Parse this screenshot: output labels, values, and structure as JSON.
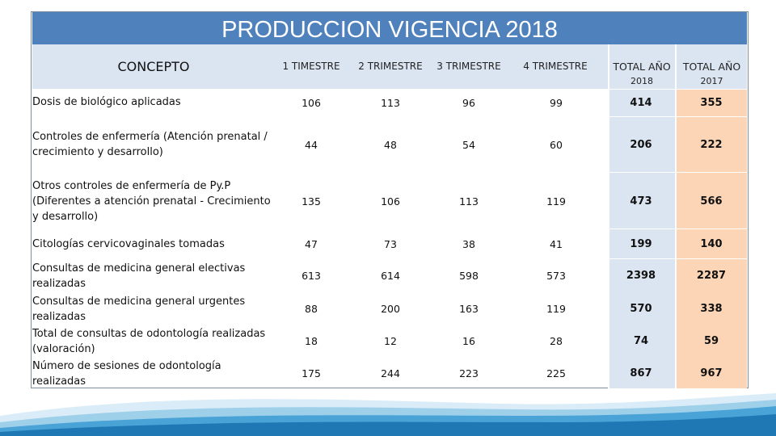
{
  "title": "PRODUCCION VIGENCIA 2018",
  "headers": {
    "concepto": "CONCEPTO",
    "t1": "1 TIMESTRE",
    "t2": "2 TRIMESTRE",
    "t3": "3 TRIMESTRE",
    "t4": "4 TRIMESTRE",
    "total2018_a": "TOTAL AÑO",
    "total2018_b": "2018",
    "total2017_a": "TOTAL AÑO",
    "total2017_b": "2017"
  },
  "rows": [
    {
      "label1": "Dosis de biológico aplicadas",
      "label2": "",
      "label3": "",
      "t1": "106",
      "t2": "113",
      "t3": "96",
      "t4": "99",
      "total2018": "414",
      "total2017": "355"
    },
    {
      "label1": "Controles de enfermería (Atención prenatal /",
      "label2": "crecimiento y desarrollo)",
      "label3": "",
      "t1": "44",
      "t2": "48",
      "t3": "54",
      "t4": "60",
      "total2018": "206",
      "total2017": "222"
    },
    {
      "label1": "Otros controles de enfermería de Py.P",
      "label2": "(Diferentes a atención prenatal - Crecimiento",
      "label3": "y desarrollo)",
      "t1": "135",
      "t2": "106",
      "t3": "113",
      "t4": "119",
      "total2018": "473",
      "total2017": "566"
    },
    {
      "label1": "Citologías cervicovaginales tomadas",
      "label2": "",
      "label3": "",
      "t1": "47",
      "t2": "73",
      "t3": "38",
      "t4": "41",
      "total2018": "199",
      "total2017": "140"
    },
    {
      "label1": "Consultas de medicina general electivas",
      "label2": "realizadas",
      "label3": "",
      "t1": "613",
      "t2": "614",
      "t3": "598",
      "t4": "573",
      "total2018": "2398",
      "total2017": "2287"
    },
    {
      "label1": "Consultas de medicina general urgentes",
      "label2": "realizadas",
      "label3": "",
      "t1": "88",
      "t2": "200",
      "t3": "163",
      "t4": "119",
      "total2018": "570",
      "total2017": "338"
    },
    {
      "label1": "Total de consultas de odontología realizadas",
      "label2": "(valoración)",
      "label3": "",
      "t1": "18",
      "t2": "12",
      "t3": "16",
      "t4": "28",
      "total2018": "74",
      "total2017": "59"
    },
    {
      "label1": "Número de sesiones de odontología",
      "label2": "realizadas",
      "label3": "",
      "t1": "175",
      "t2": "244",
      "t3": "223",
      "t4": "225",
      "total2018": "867",
      "total2017": "967"
    }
  ]
}
